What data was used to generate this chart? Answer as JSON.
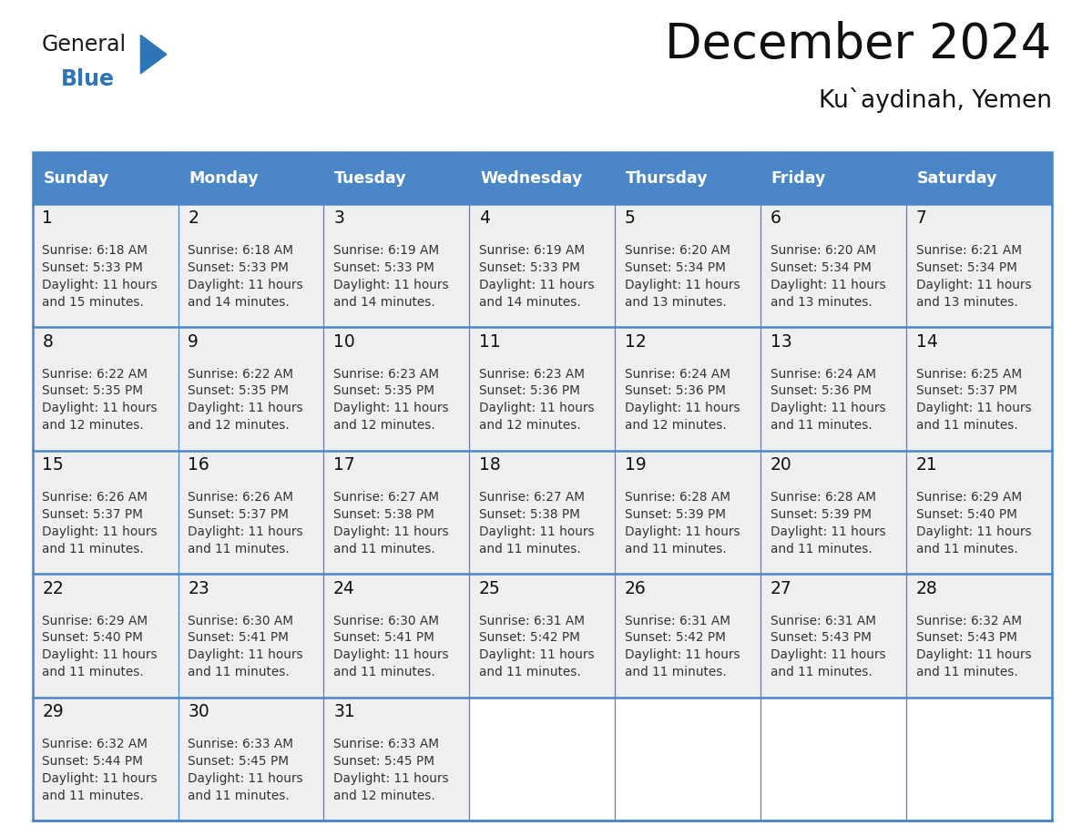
{
  "title": "December 2024",
  "subtitle": "Ku`aydinah, Yemen",
  "days_of_week": [
    "Sunday",
    "Monday",
    "Tuesday",
    "Wednesday",
    "Thursday",
    "Friday",
    "Saturday"
  ],
  "header_bg": "#4a86c8",
  "header_text": "#ffffff",
  "cell_bg": "#efefef",
  "cell_bg_empty": "#ffffff",
  "border_color": "#4a86c8",
  "text_color": "#333333",
  "calendar": [
    [
      {
        "day": 1,
        "sunrise": "6:18 AM",
        "sunset": "5:33 PM",
        "daylight_h": "11 hours",
        "daylight_m": "and 15 minutes."
      },
      {
        "day": 2,
        "sunrise": "6:18 AM",
        "sunset": "5:33 PM",
        "daylight_h": "11 hours",
        "daylight_m": "and 14 minutes."
      },
      {
        "day": 3,
        "sunrise": "6:19 AM",
        "sunset": "5:33 PM",
        "daylight_h": "11 hours",
        "daylight_m": "and 14 minutes."
      },
      {
        "day": 4,
        "sunrise": "6:19 AM",
        "sunset": "5:33 PM",
        "daylight_h": "11 hours",
        "daylight_m": "and 14 minutes."
      },
      {
        "day": 5,
        "sunrise": "6:20 AM",
        "sunset": "5:34 PM",
        "daylight_h": "11 hours",
        "daylight_m": "and 13 minutes."
      },
      {
        "day": 6,
        "sunrise": "6:20 AM",
        "sunset": "5:34 PM",
        "daylight_h": "11 hours",
        "daylight_m": "and 13 minutes."
      },
      {
        "day": 7,
        "sunrise": "6:21 AM",
        "sunset": "5:34 PM",
        "daylight_h": "11 hours",
        "daylight_m": "and 13 minutes."
      }
    ],
    [
      {
        "day": 8,
        "sunrise": "6:22 AM",
        "sunset": "5:35 PM",
        "daylight_h": "11 hours",
        "daylight_m": "and 12 minutes."
      },
      {
        "day": 9,
        "sunrise": "6:22 AM",
        "sunset": "5:35 PM",
        "daylight_h": "11 hours",
        "daylight_m": "and 12 minutes."
      },
      {
        "day": 10,
        "sunrise": "6:23 AM",
        "sunset": "5:35 PM",
        "daylight_h": "11 hours",
        "daylight_m": "and 12 minutes."
      },
      {
        "day": 11,
        "sunrise": "6:23 AM",
        "sunset": "5:36 PM",
        "daylight_h": "11 hours",
        "daylight_m": "and 12 minutes."
      },
      {
        "day": 12,
        "sunrise": "6:24 AM",
        "sunset": "5:36 PM",
        "daylight_h": "11 hours",
        "daylight_m": "and 12 minutes."
      },
      {
        "day": 13,
        "sunrise": "6:24 AM",
        "sunset": "5:36 PM",
        "daylight_h": "11 hours",
        "daylight_m": "and 11 minutes."
      },
      {
        "day": 14,
        "sunrise": "6:25 AM",
        "sunset": "5:37 PM",
        "daylight_h": "11 hours",
        "daylight_m": "and 11 minutes."
      }
    ],
    [
      {
        "day": 15,
        "sunrise": "6:26 AM",
        "sunset": "5:37 PM",
        "daylight_h": "11 hours",
        "daylight_m": "and 11 minutes."
      },
      {
        "day": 16,
        "sunrise": "6:26 AM",
        "sunset": "5:37 PM",
        "daylight_h": "11 hours",
        "daylight_m": "and 11 minutes."
      },
      {
        "day": 17,
        "sunrise": "6:27 AM",
        "sunset": "5:38 PM",
        "daylight_h": "11 hours",
        "daylight_m": "and 11 minutes."
      },
      {
        "day": 18,
        "sunrise": "6:27 AM",
        "sunset": "5:38 PM",
        "daylight_h": "11 hours",
        "daylight_m": "and 11 minutes."
      },
      {
        "day": 19,
        "sunrise": "6:28 AM",
        "sunset": "5:39 PM",
        "daylight_h": "11 hours",
        "daylight_m": "and 11 minutes."
      },
      {
        "day": 20,
        "sunrise": "6:28 AM",
        "sunset": "5:39 PM",
        "daylight_h": "11 hours",
        "daylight_m": "and 11 minutes."
      },
      {
        "day": 21,
        "sunrise": "6:29 AM",
        "sunset": "5:40 PM",
        "daylight_h": "11 hours",
        "daylight_m": "and 11 minutes."
      }
    ],
    [
      {
        "day": 22,
        "sunrise": "6:29 AM",
        "sunset": "5:40 PM",
        "daylight_h": "11 hours",
        "daylight_m": "and 11 minutes."
      },
      {
        "day": 23,
        "sunrise": "6:30 AM",
        "sunset": "5:41 PM",
        "daylight_h": "11 hours",
        "daylight_m": "and 11 minutes."
      },
      {
        "day": 24,
        "sunrise": "6:30 AM",
        "sunset": "5:41 PM",
        "daylight_h": "11 hours",
        "daylight_m": "and 11 minutes."
      },
      {
        "day": 25,
        "sunrise": "6:31 AM",
        "sunset": "5:42 PM",
        "daylight_h": "11 hours",
        "daylight_m": "and 11 minutes."
      },
      {
        "day": 26,
        "sunrise": "6:31 AM",
        "sunset": "5:42 PM",
        "daylight_h": "11 hours",
        "daylight_m": "and 11 minutes."
      },
      {
        "day": 27,
        "sunrise": "6:31 AM",
        "sunset": "5:43 PM",
        "daylight_h": "11 hours",
        "daylight_m": "and 11 minutes."
      },
      {
        "day": 28,
        "sunrise": "6:32 AM",
        "sunset": "5:43 PM",
        "daylight_h": "11 hours",
        "daylight_m": "and 11 minutes."
      }
    ],
    [
      {
        "day": 29,
        "sunrise": "6:32 AM",
        "sunset": "5:44 PM",
        "daylight_h": "11 hours",
        "daylight_m": "and 11 minutes."
      },
      {
        "day": 30,
        "sunrise": "6:33 AM",
        "sunset": "5:45 PM",
        "daylight_h": "11 hours",
        "daylight_m": "and 11 minutes."
      },
      {
        "day": 31,
        "sunrise": "6:33 AM",
        "sunset": "5:45 PM",
        "daylight_h": "11 hours",
        "daylight_m": "and 12 minutes."
      },
      null,
      null,
      null,
      null
    ]
  ],
  "logo_general_color": "#1a1a1a",
  "logo_blue_color": "#2e75b6",
  "logo_triangle_color": "#2e75b6",
  "figsize": [
    11.88,
    9.18
  ],
  "dpi": 100
}
